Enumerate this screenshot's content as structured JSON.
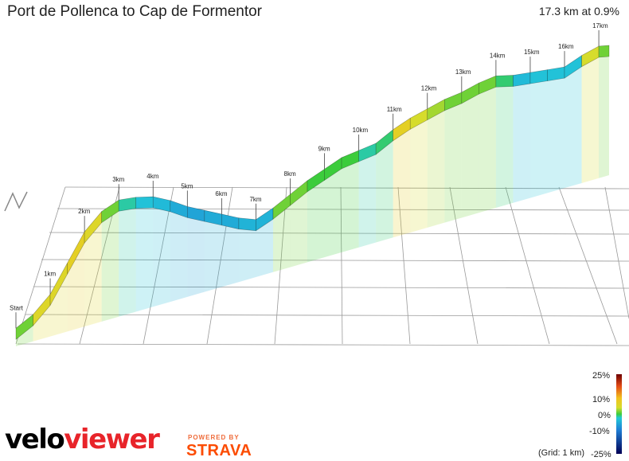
{
  "header": {
    "title": "Port de Pollenca to Cap de Formentor",
    "summary": "17.3 km at 0.9%"
  },
  "legend": {
    "labels": [
      "25%",
      "10%",
      "0%",
      "-10%",
      "-25%"
    ],
    "grid_note": "(Grid: 1 km)",
    "colors": {
      "-25": "#000055",
      "-10": "#1f7fd6",
      "0": "#22c9d8",
      "3": "#3ccc3c",
      "6": "#d6dc2c",
      "10": "#f2c21e",
      "15": "#e44b16",
      "25": "#6e0000"
    }
  },
  "branding": {
    "velo": "velo",
    "viewer": "viewer",
    "powered_by": "POWERED BY",
    "strava": "STRAVA"
  },
  "chart_data": {
    "type": "area",
    "title": "Port de Pollenca to Cap de Formentor",
    "x_unit": "km",
    "markers": [
      "Start",
      "1km",
      "2km",
      "3km",
      "4km",
      "5km",
      "6km",
      "7km",
      "8km",
      "9km",
      "10km",
      "11km",
      "12km",
      "13km",
      "14km",
      "15km",
      "16km",
      "17km"
    ],
    "profile": {
      "distance_km": [
        0,
        0.5,
        1,
        1.5,
        2,
        2.5,
        3,
        3.5,
        4,
        4.5,
        5,
        5.5,
        6,
        6.5,
        7,
        7.5,
        8,
        8.5,
        9,
        9.5,
        10,
        10.5,
        11,
        11.5,
        12,
        12.5,
        13,
        13.5,
        14,
        14.5,
        15,
        15.5,
        16,
        16.5,
        17,
        17.3
      ],
      "elevation_m": [
        5,
        25,
        60,
        120,
        180,
        215,
        230,
        225,
        215,
        195,
        170,
        150,
        130,
        110,
        95,
        110,
        130,
        150,
        165,
        180,
        185,
        190,
        210,
        225,
        235,
        245,
        250,
        260,
        265,
        255,
        250,
        245,
        240,
        255,
        265,
        260
      ],
      "gradient_pct": [
        4,
        7,
        7,
        8,
        7,
        4,
        1,
        -1,
        -2,
        -4,
        -5,
        -4,
        -4,
        -3,
        -3,
        4,
        4,
        3,
        3,
        3,
        1,
        2,
        8,
        6,
        5,
        4,
        4,
        4,
        2,
        -2,
        -1,
        -1,
        -1,
        6,
        4,
        -2
      ]
    }
  }
}
